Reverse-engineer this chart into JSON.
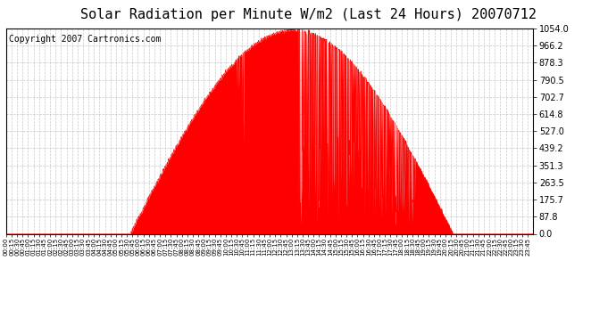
{
  "title": "Solar Radiation per Minute W/m2 (Last 24 Hours) 20070712",
  "copyright": "Copyright 2007 Cartronics.com",
  "yticks": [
    0.0,
    87.8,
    175.7,
    263.5,
    351.3,
    439.2,
    527.0,
    614.8,
    702.7,
    790.5,
    878.3,
    966.2,
    1054.0
  ],
  "ymax": 1054.0,
  "ymin": 0.0,
  "fill_color": "#FF0000",
  "line_color": "#FF0000",
  "background_color": "#FFFFFF",
  "grid_color": "#BBBBBB",
  "dashed_line_color": "#FF0000",
  "title_fontsize": 11,
  "copyright_fontsize": 7
}
